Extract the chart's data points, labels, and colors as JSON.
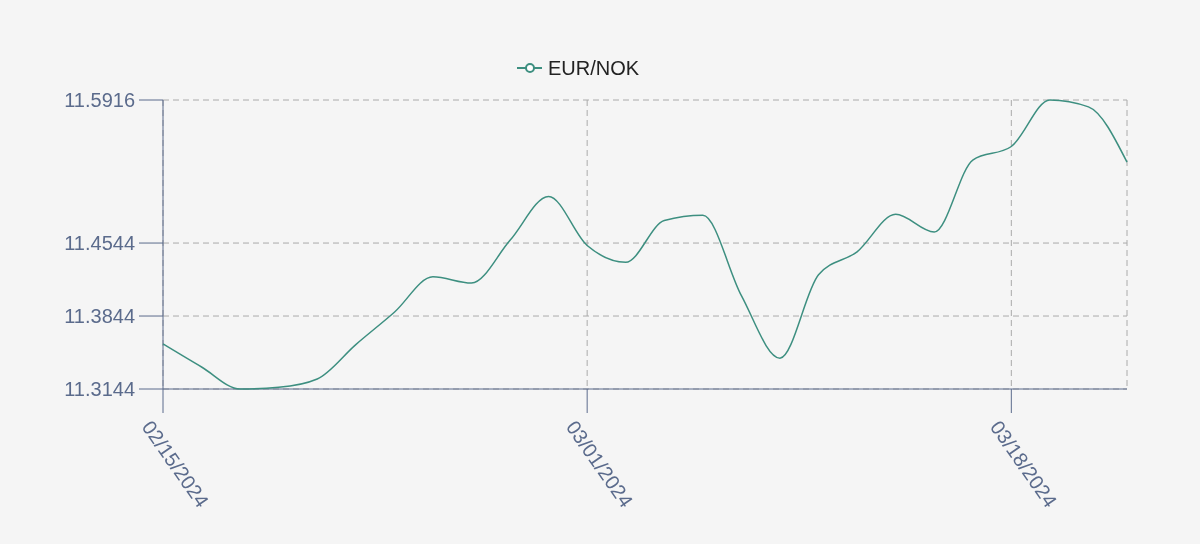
{
  "chart_data": {
    "type": "line",
    "categories": [
      "02/15/2024",
      null,
      null,
      null,
      null,
      null,
      null,
      null,
      null,
      null,
      null,
      "03/01/2024",
      null,
      null,
      null,
      null,
      null,
      null,
      null,
      null,
      null,
      null,
      "03/18/2024",
      null,
      null,
      null
    ],
    "series": [
      {
        "name": "EUR/NOK",
        "color": "#3d8f80",
        "values": [
          11.3576,
          11.3355,
          11.3144,
          11.316,
          11.324,
          11.357,
          11.388,
          11.422,
          11.416,
          11.457,
          11.499,
          11.452,
          11.436,
          11.476,
          11.481,
          11.404,
          11.344,
          11.424,
          11.446,
          11.482,
          11.465,
          11.534,
          11.547,
          11.5916,
          11.585,
          11.532
        ]
      }
    ],
    "ylim": [
      11.3144,
      11.5916
    ],
    "yticks": [
      11.3144,
      11.3844,
      11.4544,
      11.5916
    ],
    "grid": true,
    "legend": "top",
    "marker": "none",
    "line_style": "solid"
  }
}
